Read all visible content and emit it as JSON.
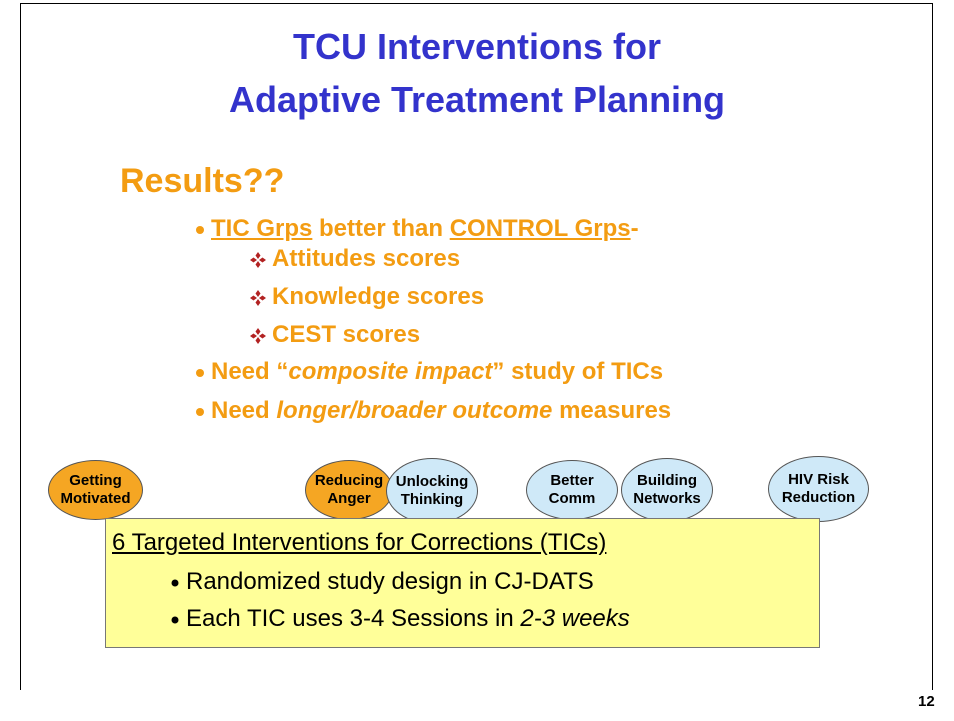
{
  "title": [
    "TCU Interventions for",
    "Adaptive Treatment Planning"
  ],
  "heading": "Results??",
  "bullets": [
    [
      "TIC Grps",
      " better than ",
      "CONTROL Grps",
      "-"
    ],
    [
      "Need “",
      "composite impact",
      "” study of TICs"
    ],
    [
      "Need ",
      "longer/broader outcome",
      " measures"
    ]
  ],
  "sub_bullets": [
    "Attitudes scores",
    "Knowledge scores",
    "CEST scores"
  ],
  "interventions": [
    [
      "Getting",
      "Motivated"
    ],
    [
      "Reducing",
      "Anger"
    ],
    [
      "Unlocking",
      "Thinking"
    ],
    [
      "Better",
      "Comm"
    ],
    [
      "Building",
      "Networks"
    ],
    [
      "HIV Risk",
      "Reduction"
    ]
  ],
  "box": {
    "heading": "6 Targeted Interventions for Corrections (TICs)",
    "items": [
      [
        "Randomized study design in CJ-DATS"
      ],
      [
        "Each TIC uses 3-4 Sessions in ",
        "2-3 weeks"
      ]
    ]
  },
  "page_number": "12"
}
